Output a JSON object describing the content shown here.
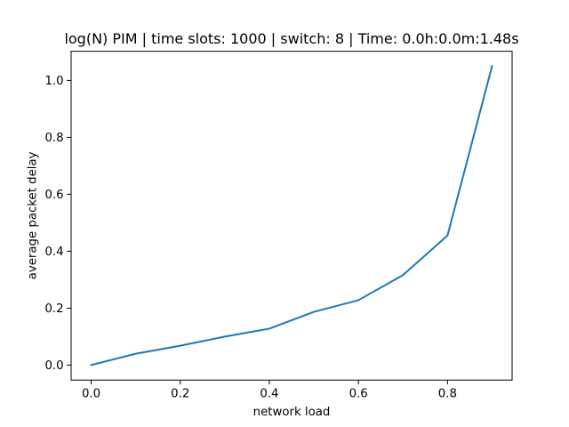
{
  "chart_data": {
    "type": "line",
    "title": "log(N) PIM | time slots: 1000 | switch: 8 | Time: 0.0h:0.0m:1.48s",
    "xlabel": "network load",
    "ylabel": "average packet delay",
    "xlim": [
      -0.045,
      0.945
    ],
    "ylim": [
      -0.0525,
      1.1025
    ],
    "xticks": [
      0.0,
      0.2,
      0.4,
      0.6,
      0.8
    ],
    "xtick_labels": [
      "0.0",
      "0.2",
      "0.4",
      "0.6",
      "0.8"
    ],
    "yticks": [
      0.0,
      0.2,
      0.4,
      0.6,
      0.8,
      1.0
    ],
    "ytick_labels": [
      "0.0",
      "0.2",
      "0.4",
      "0.6",
      "0.8",
      "1.0"
    ],
    "grid": false,
    "series": [
      {
        "color": "#1f77b4",
        "x": [
          0.0,
          0.1,
          0.2,
          0.3,
          0.4,
          0.5,
          0.6,
          0.7,
          0.8,
          0.9
        ],
        "y": [
          0.0,
          0.04,
          0.068,
          0.1,
          0.128,
          0.187,
          0.228,
          0.316,
          0.455,
          1.05
        ]
      }
    ]
  }
}
